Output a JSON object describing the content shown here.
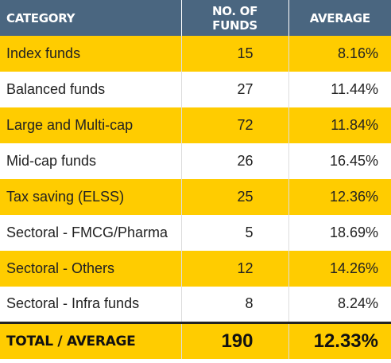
{
  "table": {
    "headers": [
      "CATEGORY",
      "NO. OF FUNDS",
      "AVERAGE"
    ],
    "rows": [
      {
        "category": "Index funds",
        "funds": "15",
        "average": "8.16%"
      },
      {
        "category": "Balanced funds",
        "funds": "27",
        "average": "11.44%"
      },
      {
        "category": "Large and Multi-cap",
        "funds": "72",
        "average": "11.84%"
      },
      {
        "category": "Mid-cap funds",
        "funds": "26",
        "average": "16.45%"
      },
      {
        "category": "Tax saving (ELSS)",
        "funds": "25",
        "average": "12.36%"
      },
      {
        "category": "Sectoral - FMCG/Pharma",
        "funds": "5",
        "average": "18.69%"
      },
      {
        "category": "Sectoral - Others",
        "funds": "12",
        "average": "14.26%"
      },
      {
        "category": "Sectoral - Infra funds",
        "funds": "8",
        "average": "8.24%"
      }
    ],
    "total": {
      "category": "TOTAL / AVERAGE",
      "funds": "190",
      "average": "12.33%"
    }
  },
  "colors": {
    "header_bg": "#4a6680",
    "stripe": "#ffcc00",
    "alt_row": "#ffffff"
  }
}
